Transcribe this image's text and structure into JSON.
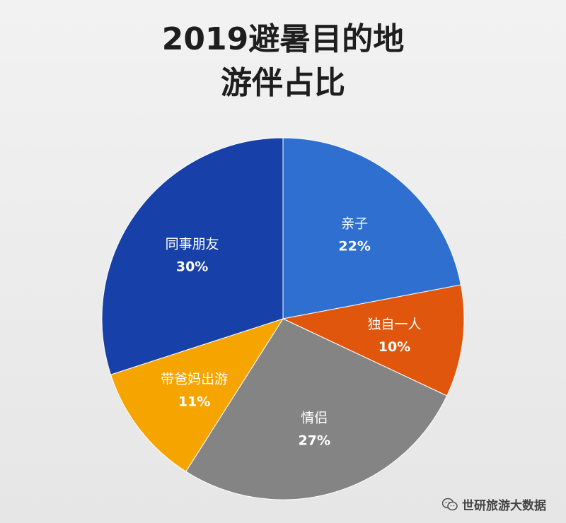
{
  "chart_data": {
    "type": "pie",
    "title_lines": [
      "2019避暑目的地",
      "游伴占比"
    ],
    "slices": [
      {
        "label": "亲子",
        "value": 22,
        "value_label": "22%",
        "color": "#2e6fd0",
        "text_color": "#ffffff"
      },
      {
        "label": "独自一人",
        "value": 10,
        "value_label": "10%",
        "color": "#e0560d",
        "text_color": "#ffffff"
      },
      {
        "label": "情侣",
        "value": 27,
        "value_label": "27%",
        "color": "#848484",
        "text_color": "#ffffff"
      },
      {
        "label": "带爸妈出游",
        "value": 11,
        "value_label": "11%",
        "color": "#f6a400",
        "text_color": "#ffffff"
      },
      {
        "label": "同事朋友",
        "value": 30,
        "value_label": "30%",
        "color": "#1740a8",
        "text_color": "#ffffff"
      }
    ],
    "legend": "none"
  },
  "watermark": {
    "text": "世研旅游大数据",
    "icon": "wechat-icon"
  }
}
